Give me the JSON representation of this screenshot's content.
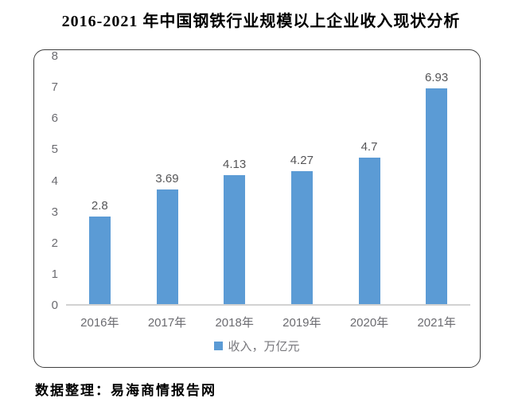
{
  "title": "2016-2021 年中国钢铁行业规模以上企业收入现状分析",
  "footer": "数据整理：易海商情报告网",
  "colors": {
    "bar": "#5B9BD5",
    "axis_text": "#6b6b70",
    "data_label_text": "#555557",
    "frame_border": "#3f3f3f",
    "baseline": "#d2d2d2"
  },
  "chart_data": {
    "type": "bar",
    "title": "2016-2021 年中国钢铁行业规模以上企业收入现状分析",
    "categories": [
      "2016年",
      "2017年",
      "2018年",
      "2019年",
      "2020年",
      "2021年"
    ],
    "values": [
      2.8,
      3.69,
      4.13,
      4.27,
      4.7,
      6.93
    ],
    "data_labels": [
      "2.8",
      "3.69",
      "4.13",
      "4.27",
      "4.7",
      "6.93"
    ],
    "legend": "收入，万亿元",
    "xlabel": "",
    "ylabel": "",
    "ylim": [
      0,
      8
    ],
    "yticks": [
      0,
      1,
      2,
      3,
      4,
      5,
      6,
      7,
      8
    ],
    "grid": false,
    "legend_position": "bottom",
    "bar_color": "#5B9BD5"
  }
}
